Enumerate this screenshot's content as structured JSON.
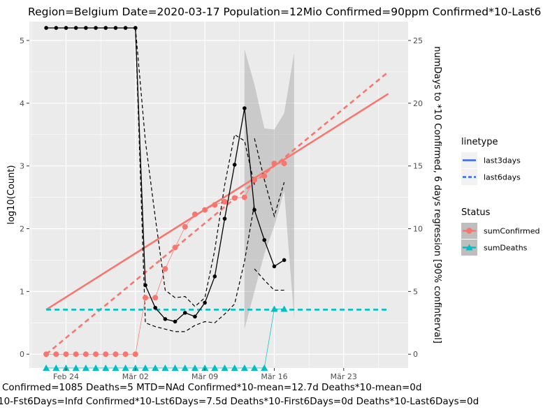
{
  "chart_data": {
    "type": "line",
    "title": "Region=Belgium Date=2020-03-17  Population=12Mio Confirmed=90ppm  Confirmed*10-Last6",
    "xlabel": "",
    "ylabel": "log10(Count)",
    "y2label": "numDays to *10 Confirmed, 6 days regression [90% confinterval]",
    "x_ticks": [
      {
        "label": "Feb 24",
        "day": 2
      },
      {
        "label": "Mär 02",
        "day": 9
      },
      {
        "label": "Mär 09",
        "day": 16
      },
      {
        "label": "Mär 16",
        "day": 23
      },
      {
        "label": "Mär 23",
        "day": 30
      }
    ],
    "xlim_days": [
      -1.7,
      36.5
    ],
    "ylim": [
      -0.22,
      5.3
    ],
    "y_ticks": [
      0,
      1,
      2,
      3,
      4,
      5
    ],
    "y2lim": [
      -1.1,
      26.5
    ],
    "y2_ticks": [
      0,
      5,
      10,
      15,
      20,
      25
    ],
    "x_start_date": "2020-02-22",
    "series": [
      {
        "name": "sumConfirmed",
        "color": "#F8766D",
        "marker": "circle",
        "values": [
          [
            0,
            0
          ],
          [
            1,
            0
          ],
          [
            2,
            0
          ],
          [
            3,
            0
          ],
          [
            4,
            0
          ],
          [
            5,
            0
          ],
          [
            6,
            0
          ],
          [
            7,
            0
          ],
          [
            8,
            0
          ],
          [
            9,
            0
          ],
          [
            10,
            0.9
          ],
          [
            11,
            0.9
          ],
          [
            12,
            1.36
          ],
          [
            13,
            1.7
          ],
          [
            14,
            2.03
          ],
          [
            15,
            2.23
          ],
          [
            16,
            2.3
          ],
          [
            17,
            2.38
          ],
          [
            18,
            2.43
          ],
          [
            19,
            2.49
          ],
          [
            20,
            2.5
          ],
          [
            21,
            2.78
          ],
          [
            22,
            2.84
          ],
          [
            23,
            3.04
          ],
          [
            24,
            3.04
          ]
        ]
      },
      {
        "name": "sumDeaths",
        "color": "#00BFC4",
        "marker": "triangle",
        "values": [
          [
            0,
            -0.22
          ],
          [
            1,
            -0.22
          ],
          [
            2,
            -0.22
          ],
          [
            3,
            -0.22
          ],
          [
            4,
            -0.22
          ],
          [
            5,
            -0.22
          ],
          [
            6,
            -0.22
          ],
          [
            7,
            -0.22
          ],
          [
            8,
            -0.22
          ],
          [
            9,
            -0.22
          ],
          [
            10,
            -0.22
          ],
          [
            11,
            -0.22
          ],
          [
            12,
            -0.22
          ],
          [
            13,
            -0.22
          ],
          [
            14,
            -0.22
          ],
          [
            15,
            -0.22
          ],
          [
            16,
            -0.22
          ],
          [
            17,
            -0.22
          ],
          [
            18,
            -0.22
          ],
          [
            19,
            -0.22
          ],
          [
            20,
            -0.22
          ],
          [
            21,
            -0.22
          ],
          [
            22,
            -0.22
          ],
          [
            23,
            0.72
          ],
          [
            24,
            0.72
          ]
        ]
      }
    ],
    "regression_lines": [
      {
        "linetype": "last3days",
        "status": "sumConfirmed",
        "color": "#F8766D",
        "dash": "solid",
        "x": [
          0,
          34.5
        ],
        "y": [
          0.71,
          4.15
        ]
      },
      {
        "linetype": "last6days",
        "status": "sumConfirmed",
        "color": "#F8766D",
        "dash": "dashed",
        "x": [
          0,
          34.5
        ],
        "y": [
          0.0,
          4.5
        ]
      },
      {
        "linetype": "last6days",
        "status": "sumDeaths",
        "color": "#00BFC4",
        "dash": "dashed",
        "x": [
          0,
          34.5
        ],
        "y": [
          0.71,
          0.71
        ]
      }
    ],
    "numdays_series": {
      "axis": "y2",
      "color": "#000000",
      "values": [
        [
          0,
          26
        ],
        [
          1,
          26
        ],
        [
          2,
          26
        ],
        [
          3,
          26
        ],
        [
          4,
          26
        ],
        [
          5,
          26
        ],
        [
          6,
          26
        ],
        [
          7,
          26
        ],
        [
          8,
          26
        ],
        [
          9,
          26
        ],
        [
          10,
          5.5
        ],
        [
          11,
          3.7
        ],
        [
          12,
          2.8
        ],
        [
          13,
          2.6
        ],
        [
          14,
          3.3
        ],
        [
          15,
          3.0
        ],
        [
          16,
          4.1
        ],
        [
          17,
          6.2
        ],
        [
          18,
          10.8
        ],
        [
          19,
          15.1
        ],
        [
          20,
          19.6
        ],
        [
          21,
          11.5
        ],
        [
          22,
          9.1
        ],
        [
          23,
          7.0
        ],
        [
          24,
          7.5
        ]
      ]
    },
    "numdays_conf_dashed": {
      "upper": [
        [
          9,
          26
        ],
        [
          10,
          17
        ],
        [
          11,
          10.9
        ],
        [
          12,
          5.1
        ],
        [
          13,
          4.5
        ],
        [
          14,
          4.6
        ],
        [
          15,
          3.8
        ],
        [
          16,
          4.5
        ],
        [
          17,
          8.3
        ],
        [
          18,
          13.5
        ],
        [
          19,
          17.5
        ],
        [
          20,
          17.0
        ],
        [
          21,
          13.5
        ]
      ],
      "lower": [
        [
          9,
          26
        ],
        [
          10,
          2.5
        ],
        [
          11,
          2.2
        ],
        [
          12,
          2.0
        ],
        [
          13,
          1.8
        ],
        [
          14,
          1.8
        ],
        [
          15,
          2.3
        ],
        [
          16,
          2.6
        ],
        [
          17,
          2.5
        ],
        [
          18,
          3.2
        ],
        [
          19,
          4.0
        ],
        [
          20,
          7.4
        ],
        [
          21,
          12.0
        ]
      ],
      "upper_tail": [
        [
          21,
          17.2
        ],
        [
          22,
          13.9
        ],
        [
          23,
          11.0
        ],
        [
          24,
          13.7
        ]
      ],
      "lower_tail": [
        [
          21,
          6.8
        ],
        [
          22,
          5.9
        ],
        [
          23,
          5.1
        ],
        [
          24,
          5.1
        ]
      ]
    },
    "numdays_ribbon": {
      "upper": [
        [
          20,
          24.3
        ],
        [
          21,
          21.5
        ],
        [
          22,
          18.0
        ],
        [
          23,
          17.9
        ],
        [
          24,
          19.2
        ],
        [
          25,
          24.0
        ]
      ],
      "lower": [
        [
          20,
          2.0
        ],
        [
          21,
          5.0
        ],
        [
          22,
          8.0
        ],
        [
          23,
          10.2
        ],
        [
          24,
          13.0
        ],
        [
          25,
          2.8
        ]
      ]
    },
    "legend": {
      "position": "right",
      "linetype_title": "linetype",
      "linetype_items": [
        {
          "label": "last3days",
          "dash": "solid",
          "color": "#3366FF"
        },
        {
          "label": "last6days",
          "dash": "dashed",
          "color": "#3366FF"
        }
      ],
      "status_title": "Status",
      "status_items": [
        {
          "label": "sumConfirmed",
          "color": "#F8766D",
          "marker": "circle"
        },
        {
          "label": "sumDeaths",
          "color": "#00BFC4",
          "marker": "triangle"
        }
      ]
    },
    "caption_line1": "Confirmed=1085 Deaths=5  MTD=NAd   Confirmed*10-mean=12.7d  Deaths*10-mean=0d",
    "caption_line2": "10-Fst6Days=Infd  Confirmed*10-Lst6Days=7.5d    Deaths*10-First6Days=0d  Deaths*10-Last6Days=0d",
    "grid": true,
    "panel_color": "#EBEBEB"
  }
}
